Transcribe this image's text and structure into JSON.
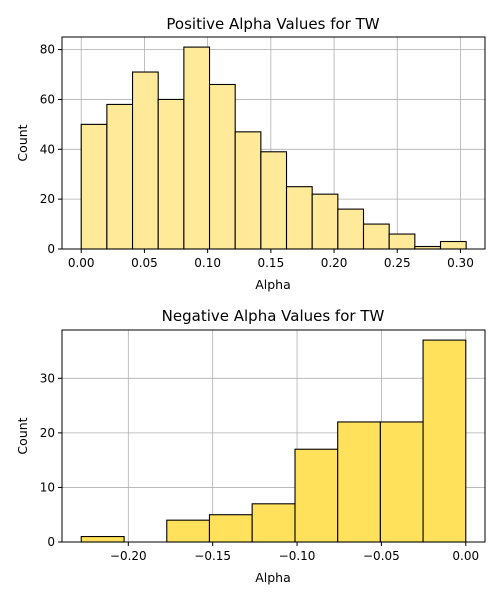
{
  "chart_data": [
    {
      "type": "bar",
      "title": "Positive Alpha Values for TW",
      "xlabel": "Alpha",
      "ylabel": "Count",
      "bar_color": "#ffea99",
      "edge_color": "#000000",
      "grid": true,
      "xlim": [
        -0.0152,
        0.3194
      ],
      "ylim": [
        0,
        85.05
      ],
      "xticks": [
        0.0,
        0.05,
        0.1,
        0.15,
        0.2,
        0.25,
        0.3
      ],
      "xtick_labels": [
        "0.00",
        "0.05",
        "0.10",
        "0.15",
        "0.20",
        "0.25",
        "0.30"
      ],
      "yticks": [
        0,
        20,
        40,
        60,
        80
      ],
      "ytick_labels": [
        "0",
        "20",
        "40",
        "60",
        "80"
      ],
      "bin_edges": [
        0.0,
        0.0203,
        0.0406,
        0.0609,
        0.0812,
        0.1015,
        0.1218,
        0.1421,
        0.1624,
        0.1827,
        0.203,
        0.2233,
        0.2436,
        0.2639,
        0.2842,
        0.3045
      ],
      "values": [
        50,
        58,
        71,
        60,
        81,
        66,
        47,
        39,
        25,
        22,
        16,
        10,
        6,
        1,
        3
      ]
    },
    {
      "type": "bar",
      "title": "Negative Alpha Values for TW",
      "xlabel": "Alpha",
      "ylabel": "Count",
      "bar_color": "#ffe15c",
      "edge_color": "#000000",
      "grid": true,
      "xlim": [
        -0.2393,
        0.0114
      ],
      "ylim": [
        0,
        38.85
      ],
      "xticks": [
        -0.2,
        -0.15,
        -0.1,
        -0.05,
        0.0
      ],
      "xtick_labels": [
        "−0.20",
        "−0.15",
        "−0.10",
        "−0.05",
        "0.00"
      ],
      "yticks": [
        0,
        10,
        20,
        30
      ],
      "ytick_labels": [
        "0",
        "10",
        "20",
        "30"
      ],
      "bin_edges": [
        -0.2279,
        -0.2025,
        -0.1772,
        -0.1519,
        -0.1266,
        -0.1012,
        -0.0759,
        -0.0506,
        -0.0253,
        0.0
      ],
      "values": [
        1,
        0,
        4,
        5,
        7,
        17,
        22,
        22,
        37
      ]
    }
  ]
}
